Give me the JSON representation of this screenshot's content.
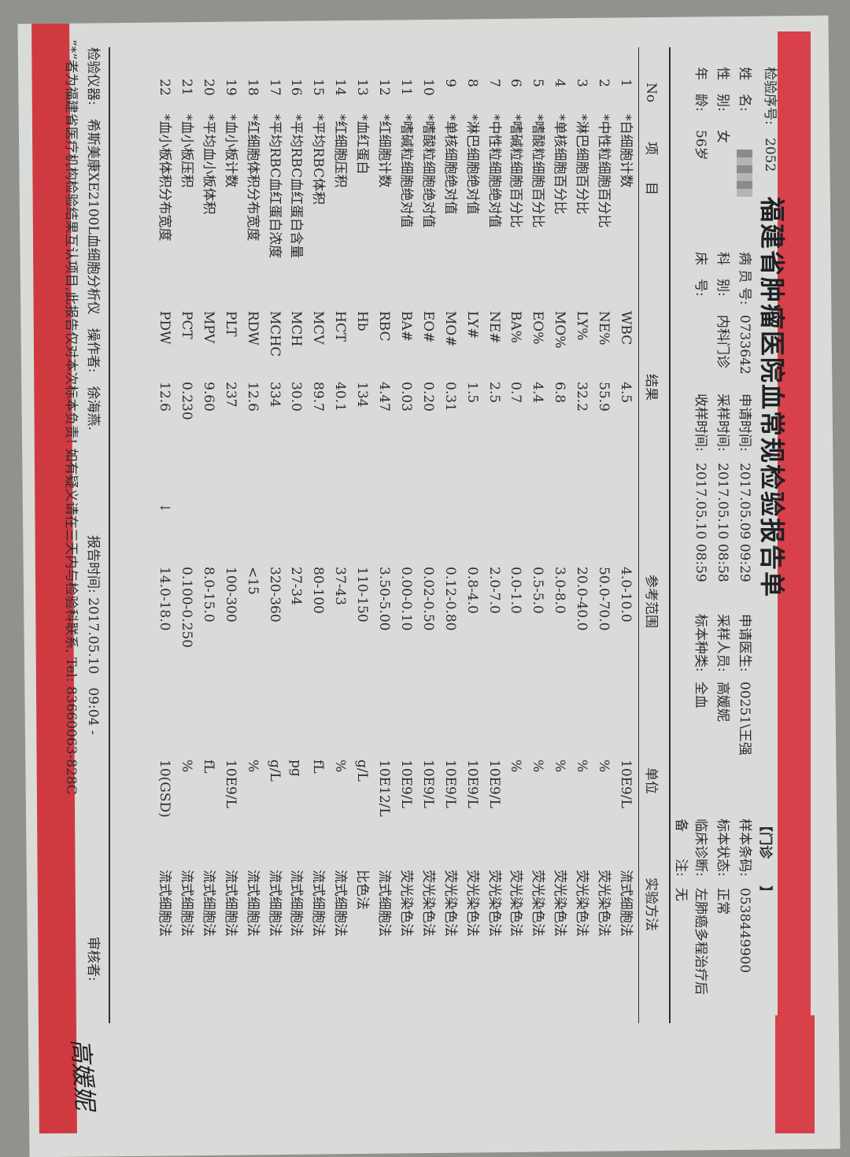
{
  "colors": {
    "band": "#d8404a",
    "paper": "#d9dbd8",
    "ink": "#2b2d30"
  },
  "title": "福建省肿瘤医院血常规检验报告单",
  "header": {
    "serial_label": "检验序号:",
    "serial": "2052",
    "name_label": "姓　名:",
    "name_redacted": true,
    "sex_label": "性　别:",
    "sex": "女",
    "age_label": "年　龄:",
    "age": "56岁",
    "patient_id_label": "病 员 号:",
    "patient_id": "0733642",
    "dept_label": "科　别:",
    "dept": "内科门诊",
    "bed_label": "床　号:",
    "bed": "",
    "apply_time_label": "申请时间:",
    "apply_time": "2017.05.09 09:29",
    "collect_time_label": "采样时间:",
    "collect_time": "2017.05.10 08:58",
    "receive_time_label": "收样时间:",
    "receive_time": "2017.05.10 08:59",
    "doctor_label": "申请医生:",
    "doctor": "00251\\王强",
    "collector_label": "采样人员:",
    "collector": "高媛妮",
    "specimen_label": "标本种类:",
    "specimen": "全血",
    "clinic_tag": "【门诊　　】",
    "barcode_label": "样本条码:",
    "barcode": "0538449900",
    "status_label": "标本状态:",
    "status": "正常",
    "diagnosis_label": "临床诊断:",
    "diagnosis": "左肺癌多程治疗后",
    "remark_label": "备　　注:",
    "remark": "无"
  },
  "columns": {
    "no": "No",
    "item": "项　　目",
    "result": "结果",
    "range": "参考范围",
    "unit": "单位",
    "method": "实验方法"
  },
  "rows": [
    {
      "no": "1",
      "item": "*白细胞计数",
      "code": "WBC",
      "result": "4.5",
      "flag": "",
      "range": "4.0-10.0",
      "unit": "10E9/L",
      "method": "流式细胞法"
    },
    {
      "no": "2",
      "item": "*中性粒细胞百分比",
      "code": "NE%",
      "result": "55.9",
      "flag": "",
      "range": "50.0-70.0",
      "unit": "%",
      "method": "荧光染色法"
    },
    {
      "no": "3",
      "item": "*淋巴细胞百分比",
      "code": "LY%",
      "result": "32.2",
      "flag": "",
      "range": "20.0-40.0",
      "unit": "%",
      "method": "荧光染色法"
    },
    {
      "no": "4",
      "item": "*单核细胞百分比",
      "code": "MO%",
      "result": "6.8",
      "flag": "",
      "range": "3.0-8.0",
      "unit": "%",
      "method": "荧光染色法"
    },
    {
      "no": "5",
      "item": "*嗜酸粒细胞百分比",
      "code": "EO%",
      "result": "4.4",
      "flag": "",
      "range": "0.5-5.0",
      "unit": "%",
      "method": "荧光染色法"
    },
    {
      "no": "6",
      "item": "*嗜碱粒细胞百分比",
      "code": "BA%",
      "result": "0.7",
      "flag": "",
      "range": "0.0-1.0",
      "unit": "%",
      "method": "荧光染色法"
    },
    {
      "no": "7",
      "item": "*中性粒细胞绝对值",
      "code": "NE#",
      "result": "2.5",
      "flag": "",
      "range": "2.0-7.0",
      "unit": "10E9/L",
      "method": "荧光染色法"
    },
    {
      "no": "8",
      "item": "*淋巴细胞绝对值",
      "code": "LY#",
      "result": "1.5",
      "flag": "",
      "range": "0.8-4.0",
      "unit": "10E9/L",
      "method": "荧光染色法"
    },
    {
      "no": "9",
      "item": "*单核细胞绝对值",
      "code": "MO#",
      "result": "0.31",
      "flag": "",
      "range": "0.12-0.80",
      "unit": "10E9/L",
      "method": "荧光染色法"
    },
    {
      "no": "10",
      "item": "*嗜酸粒细胞绝对值",
      "code": "EO#",
      "result": "0.20",
      "flag": "",
      "range": "0.02-0.50",
      "unit": "10E9/L",
      "method": "荧光染色法"
    },
    {
      "no": "11",
      "item": "*嗜碱粒细胞绝对值",
      "code": "BA#",
      "result": "0.03",
      "flag": "",
      "range": "0.00-0.10",
      "unit": "10E9/L",
      "method": "荧光染色法"
    },
    {
      "no": "12",
      "item": "*红细胞计数",
      "code": "RBC",
      "result": "4.47",
      "flag": "",
      "range": "3.50-5.00",
      "unit": "10E12/L",
      "method": "流式细胞法"
    },
    {
      "no": "13",
      "item": "*血红蛋白",
      "code": "Hb",
      "result": "134",
      "flag": "",
      "range": "110-150",
      "unit": "g/L",
      "method": "比色法"
    },
    {
      "no": "14",
      "item": "*红细胞压积",
      "code": "HCT",
      "result": "40.1",
      "flag": "",
      "range": "37-43",
      "unit": "%",
      "method": "流式细胞法"
    },
    {
      "no": "15",
      "item": "*平均RBC体积",
      "code": "MCV",
      "result": "89.7",
      "flag": "",
      "range": "80-100",
      "unit": "fL",
      "method": "流式细胞法"
    },
    {
      "no": "16",
      "item": "*平均RBC血红蛋白含量",
      "code": "MCH",
      "result": "30.0",
      "flag": "",
      "range": "27-34",
      "unit": "pg",
      "method": "流式细胞法"
    },
    {
      "no": "17",
      "item": "*平均RBC血红蛋白浓度",
      "code": "MCHC",
      "result": "334",
      "flag": "",
      "range": "320-360",
      "unit": "g/L",
      "method": "流式细胞法"
    },
    {
      "no": "18",
      "item": "*红细胞体积分布宽度",
      "code": "RDW",
      "result": "12.6",
      "flag": "",
      "range": "<15",
      "unit": "%",
      "method": "流式细胞法"
    },
    {
      "no": "19",
      "item": "*血小板计数",
      "code": "PLT",
      "result": "237",
      "flag": "",
      "range": "100-300",
      "unit": "10E9/L",
      "method": "流式细胞法"
    },
    {
      "no": "20",
      "item": "*平均血小板体积",
      "code": "MPV",
      "result": "9.60",
      "flag": "",
      "range": "8.0-15.0",
      "unit": "fL",
      "method": "流式细胞法"
    },
    {
      "no": "21",
      "item": "*血小板压积",
      "code": "PCT",
      "result": "0.230",
      "flag": "",
      "range": "0.100-0.250",
      "unit": "%",
      "method": "流式细胞法"
    },
    {
      "no": "22",
      "item": "*血小板体积分布宽度",
      "code": "PDW",
      "result": "12.6",
      "flag": "↓",
      "range": "14.0-18.0",
      "unit": "10(GSD)",
      "method": "流式细胞法"
    }
  ],
  "footer": {
    "instrument": "检验仪器:　希斯美康XE2100L血细胞分析仪　操作者:　徐海燕.",
    "report_time": "报告时间: 2017.05.10　09:04 -",
    "reviewer_label": "审核者:",
    "signature": "高媛妮",
    "note": "“*”者为福建省医疗机构检验结果互认项目,此报告仅对本次标本负责! 如有疑义请在三天内与检验科联系, Tel: 83660063-828C"
  }
}
